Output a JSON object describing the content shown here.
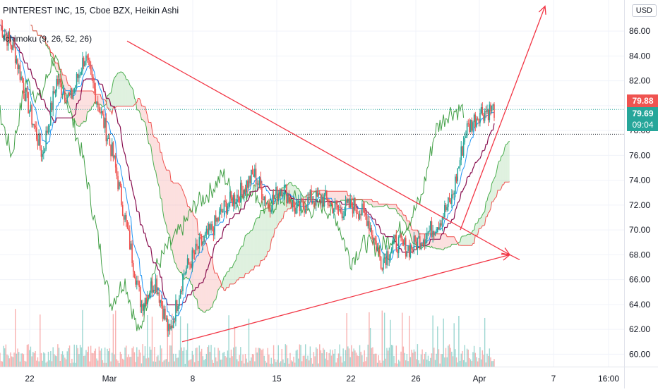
{
  "legend": {
    "symbol_line": "PINTEREST INC, 15, Cboe BZX, Heikin Ashi",
    "indicator": "Ichimoku (9, 26, 52, 26)"
  },
  "currency_button": "USD",
  "price_tags": [
    {
      "value": "79.88",
      "color": "#ef5350"
    },
    {
      "value": "79.69",
      "color": "#26a69a"
    },
    {
      "value": "09:04",
      "color": "#26a69a"
    }
  ],
  "colors": {
    "up": "#26a69a",
    "down": "#ef5350",
    "trendline": "#f23645",
    "lagging_span": "#43a047",
    "base_line": "#880e4f",
    "conversion_line": "#2196f3",
    "leading_a": "#4caf50",
    "leading_b": "#ef5350",
    "current_price_line": "#26a69a"
  },
  "chart_data": {
    "type": "candlestick",
    "title": "PINTEREST INC, 15, Cboe BZX, Heikin Ashi",
    "indicator": "Ichimoku (9, 26, 52, 26)",
    "y_ticks": [
      60.0,
      62.0,
      64.0,
      66.0,
      68.0,
      70.0,
      72.0,
      74.0,
      76.0,
      78.0,
      80.0,
      82.0,
      84.0,
      86.0
    ],
    "y_tick_labels": [
      "60.00",
      "62.00",
      "64.00",
      "66.00",
      "68.00",
      "70.00",
      "72.00",
      "74.00",
      "76.00",
      "78.00",
      "80.00",
      "82.00",
      "84.00",
      "86.00"
    ],
    "ylim": [
      59.0,
      88.5
    ],
    "x_tick_labels": [
      "22",
      "Mar",
      "8",
      "15",
      "22",
      "26",
      "Apr",
      "7",
      "16:00"
    ],
    "last_price": 79.69,
    "high_marker": 79.88,
    "countdown": "09:04",
    "price_path": [
      [
        "22",
        86.5
      ],
      [
        "22",
        84.5
      ],
      [
        "22",
        80.0
      ],
      [
        "22",
        76.0
      ],
      [
        "22",
        82.0
      ],
      [
        "Mar",
        80.5
      ],
      [
        "Mar",
        84.0
      ],
      [
        "Mar",
        80.0
      ],
      [
        "Mar",
        76.0
      ],
      [
        "Mar",
        70.0
      ],
      [
        "Mar",
        64.0
      ],
      [
        "8",
        66.0
      ],
      [
        "8",
        61.5
      ],
      [
        "8",
        66.5
      ],
      [
        "8",
        68.5
      ],
      [
        "8",
        70.0
      ],
      [
        "8",
        72.0
      ],
      [
        "15",
        73.0
      ],
      [
        "15",
        74.5
      ],
      [
        "15",
        72.0
      ],
      [
        "15",
        73.5
      ],
      [
        "15",
        71.5
      ],
      [
        "15",
        72.5
      ],
      [
        "22",
        72.5
      ],
      [
        "22",
        71.5
      ],
      [
        "22",
        72.0
      ],
      [
        "22",
        71.0
      ],
      [
        "26",
        67.5
      ],
      [
        "26",
        69.0
      ],
      [
        "26",
        68.5
      ],
      [
        "26",
        69.5
      ],
      [
        "26",
        70.5
      ],
      [
        "Apr",
        72.5
      ],
      [
        "Apr",
        78.0
      ],
      [
        "Apr",
        79.5
      ],
      [
        "Apr",
        79.69
      ]
    ],
    "trendlines": [
      {
        "name": "upper",
        "from": [
          "Mar",
          85.2
        ],
        "to": [
          "Apr",
          68.0
        ]
      },
      {
        "name": "lower",
        "from": [
          "8",
          61.0
        ],
        "to": [
          "Apr",
          68.0
        ]
      },
      {
        "name": "breakout",
        "from": [
          "Apr",
          70.0
        ],
        "to": [
          "7",
          88.0
        ]
      }
    ]
  }
}
